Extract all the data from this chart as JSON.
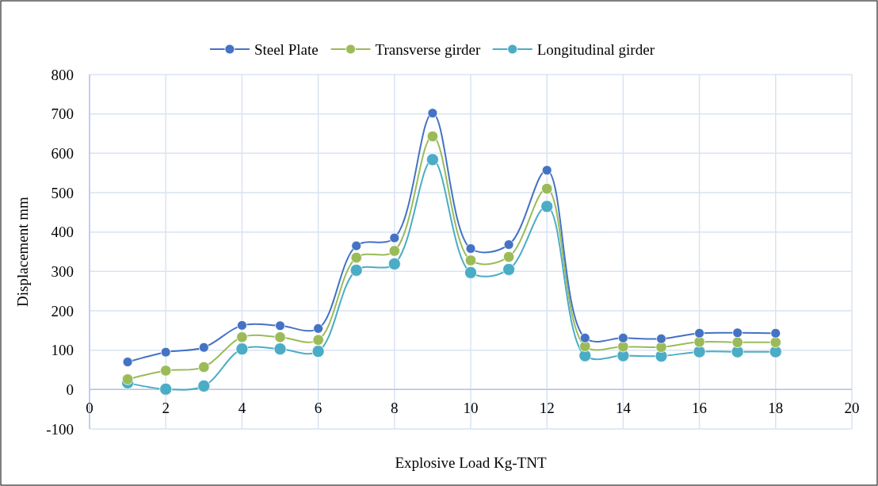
{
  "chart_data": {
    "type": "line",
    "xlabel": "Explosive Load Kg-TNT",
    "ylabel": "Displacement mm",
    "x": [
      1,
      2,
      3,
      4,
      5,
      6,
      7,
      8,
      9,
      10,
      11,
      12,
      13,
      14,
      15,
      16,
      17,
      18
    ],
    "series": [
      {
        "name": "Steel Plate",
        "color": "#4472c4",
        "values": [
          70,
          95,
          107,
          163,
          162,
          155,
          365,
          385,
          702,
          358,
          368,
          557,
          131,
          131,
          129,
          143,
          144,
          143
        ]
      },
      {
        "name": "Transverse girder",
        "color": "#9bbb59",
        "values": [
          26,
          48,
          57,
          133,
          133,
          126,
          335,
          352,
          643,
          328,
          337,
          510,
          110,
          109,
          108,
          121,
          120,
          120
        ]
      },
      {
        "name": "Longitudinal girder",
        "color": "#4bacc6",
        "values": [
          17,
          1,
          9,
          103,
          103,
          97,
          303,
          319,
          584,
          297,
          305,
          465,
          86,
          86,
          85,
          96,
          96,
          96
        ]
      }
    ],
    "xlim": [
      0,
      20
    ],
    "xticks": [
      0,
      2,
      4,
      6,
      8,
      10,
      12,
      14,
      16,
      18,
      20
    ],
    "ylim": [
      -100,
      800
    ],
    "yticks": [
      -100,
      0,
      100,
      200,
      300,
      400,
      500,
      600,
      700,
      800
    ],
    "grid": true,
    "legend": "top",
    "marker": "circle",
    "line_style": "solid"
  }
}
